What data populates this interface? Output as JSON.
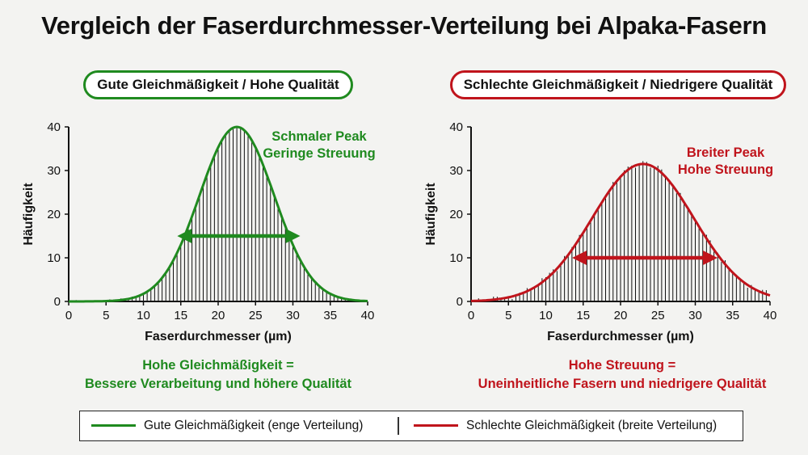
{
  "title": "Vergleich der Faserdurchmesser-Verteilung bei Alpaka-Fasern",
  "colors": {
    "good": "#1f8a1f",
    "bad": "#c0141c",
    "bars": "#111111"
  },
  "chart_data": [
    {
      "type": "bar",
      "panel_label": "Gute Gleichmäßigkeit / Hohe Qualität",
      "xlabel": "Faserdurchmesser (µm)",
      "ylabel": "Häufigkeit",
      "xlim": [
        0,
        40
      ],
      "ylim": [
        0,
        40
      ],
      "xticks": [
        "0",
        "5",
        "10",
        "15",
        "20",
        "25",
        "30",
        "35",
        "40"
      ],
      "yticks": [
        "0",
        "10",
        "20",
        "30",
        "40"
      ],
      "grid": false,
      "curve": {
        "mean": 22.5,
        "sd": 5.0,
        "peak": 40
      },
      "bar_step": 0.5,
      "spread_arrow": [
        15.5,
        30
      ],
      "spread_arrow_y": 15,
      "annotation": [
        "Schmaler Peak",
        "Geringe Streuung"
      ],
      "conclusion": [
        "Hohe Gleichmäßigkeit =",
        "Bessere Verarbeitung und höhere Qualität"
      ]
    },
    {
      "type": "bar",
      "panel_label": "Schlechte Gleichmäßigkeit / Niedrigere Qualität",
      "xlabel": "Faserdurchmesser (µm)",
      "ylabel": "Häufigkeit",
      "xlim": [
        0,
        40
      ],
      "ylim": [
        0,
        40
      ],
      "xticks": [
        "0",
        "5",
        "10",
        "15",
        "20",
        "25",
        "30",
        "35",
        "40"
      ],
      "yticks": [
        "0",
        "10",
        "20",
        "30",
        "40"
      ],
      "grid": false,
      "curve": {
        "mean": 23,
        "sd": 6.8,
        "peak": 31.5
      },
      "bar_step": 0.5,
      "spread_arrow": [
        14.5,
        32
      ],
      "spread_arrow_y": 10,
      "annotation": [
        "Breiter Peak",
        "Hohe Streuung"
      ],
      "conclusion": [
        "Hohe Streuung =",
        "Uneinheitliche Fasern und niedrigere Qualität"
      ]
    }
  ],
  "legend": {
    "good_label": "Gute Gleichmäßigkeit (enge Verteilung)",
    "bad_label": "Schlechte Gleichmäßigkeit (breite Verteilung)",
    "placement": "bottom"
  }
}
